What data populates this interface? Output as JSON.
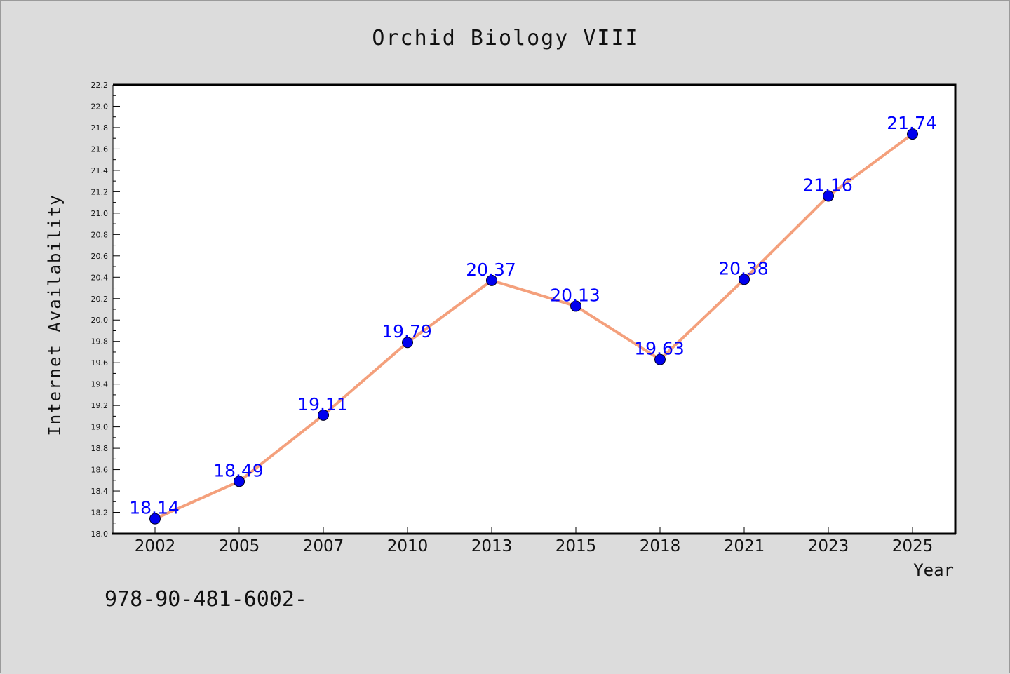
{
  "chart_data": {
    "type": "line",
    "title": "Orchid Biology VIII",
    "xlabel": "Year",
    "ylabel": "Internet Availability",
    "categories": [
      "2002",
      "2005",
      "2007",
      "2010",
      "2013",
      "2015",
      "2018",
      "2021",
      "2023",
      "2025"
    ],
    "series": [
      {
        "values": [
          18.14,
          18.49,
          19.11,
          19.79,
          20.37,
          20.13,
          19.63,
          20.38,
          21.16,
          21.74
        ],
        "labels": [
          "18.14",
          "18.49",
          "19.11",
          "19.79",
          "20.37",
          "20.13",
          "19.63",
          "20.38",
          "21.16",
          "21.74"
        ]
      }
    ],
    "ylim": [
      18.0,
      22.2
    ],
    "yticks": [
      "18.0",
      "18.2",
      "18.4",
      "18.6",
      "18.8",
      "19.0",
      "19.2",
      "19.4",
      "19.6",
      "19.8",
      "20.0",
      "20.2",
      "20.4",
      "20.6",
      "20.8",
      "21.0",
      "21.2",
      "21.4",
      "21.6",
      "21.8",
      "22.0",
      "22.2"
    ],
    "grid": false,
    "line_color": "#f4a07c",
    "marker_color": "#0000ee",
    "label_color": "#0000ff",
    "background": "#dcdcdc",
    "plot_background": "#ffffff"
  },
  "footer": {
    "text": "978-90-481-6002-"
  }
}
